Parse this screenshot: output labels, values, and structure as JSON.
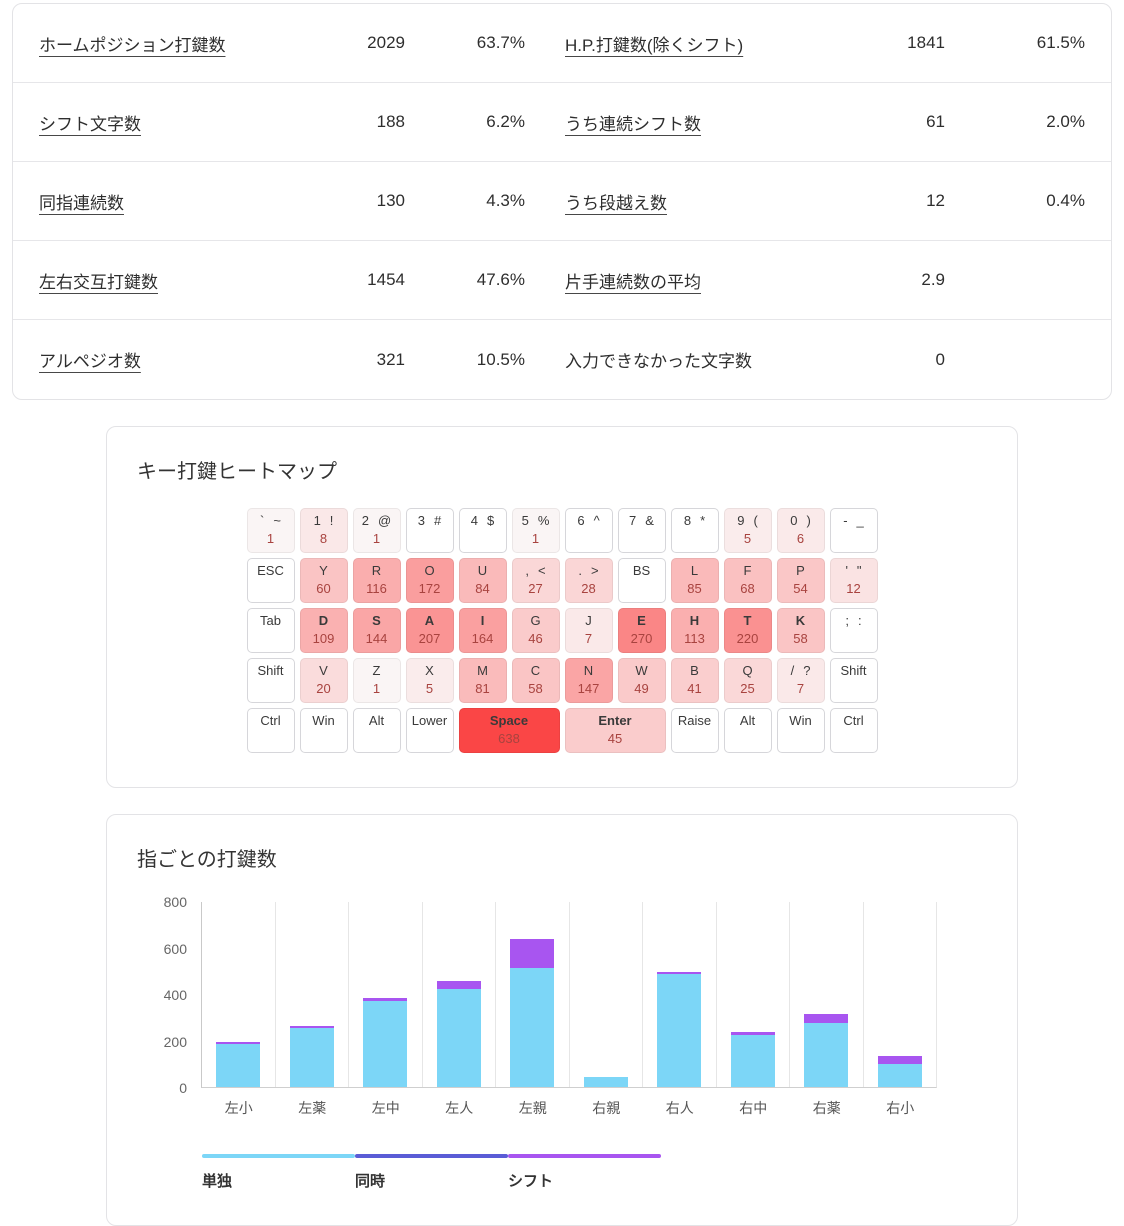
{
  "stats_table": {
    "rows": [
      {
        "cells": [
          {
            "label": "ホームポジション打鍵数",
            "value": "2029",
            "percent": "63.7%",
            "underline": true
          },
          {
            "label": "H.P.打鍵数(除くシフト)",
            "value": "1841",
            "percent": "61.5%",
            "underline": true
          }
        ]
      },
      {
        "cells": [
          {
            "label": "シフト文字数",
            "value": "188",
            "percent": "6.2%",
            "underline": true
          },
          {
            "label": "うち連続シフト数",
            "value": "61",
            "percent": "2.0%",
            "underline": true
          }
        ]
      },
      {
        "cells": [
          {
            "label": "同指連続数",
            "value": "130",
            "percent": "4.3%",
            "underline": true
          },
          {
            "label": "うち段越え数",
            "value": "12",
            "percent": "0.4%",
            "underline": true
          }
        ]
      },
      {
        "cells": [
          {
            "label": "左右交互打鍵数",
            "value": "1454",
            "percent": "47.6%",
            "underline": true
          },
          {
            "label": "片手連続数の平均",
            "value": "2.9",
            "percent": "",
            "underline": true
          }
        ]
      },
      {
        "cells": [
          {
            "label": "アルペジオ数",
            "value": "321",
            "percent": "10.5%",
            "underline": true
          },
          {
            "label": "入力できなかった文字数",
            "value": "0",
            "percent": "",
            "underline": false
          }
        ]
      }
    ]
  },
  "heatmap": {
    "title": "キー打鍵ヒートマップ",
    "max_count": 638,
    "count_text_color": "#a8433f",
    "rows": [
      {
        "keys": [
          {
            "label": "`",
            "sub": "~",
            "count": 1
          },
          {
            "label": "1",
            "sub": "!",
            "count": 8
          },
          {
            "label": "2",
            "sub": "@",
            "count": 1
          },
          {
            "label": "3",
            "sub": "#"
          },
          {
            "label": "4",
            "sub": "$"
          },
          {
            "label": "5",
            "sub": "%",
            "count": 1
          },
          {
            "label": "6",
            "sub": "^"
          },
          {
            "label": "7",
            "sub": "&"
          },
          {
            "label": "8",
            "sub": "*"
          },
          {
            "label": "9",
            "sub": "(",
            "count": 5
          },
          {
            "label": "0",
            "sub": ")",
            "count": 6
          },
          {
            "label": "-",
            "sub": "_"
          }
        ]
      },
      {
        "keys": [
          {
            "label": "ESC",
            "mod": true
          },
          {
            "label": "Y",
            "count": 60
          },
          {
            "label": "R",
            "count": 116
          },
          {
            "label": "O",
            "count": 172
          },
          {
            "label": "U",
            "count": 84
          },
          {
            "label": ",",
            "sub": "<",
            "count": 27
          },
          {
            "label": ".",
            "sub": ">",
            "count": 28
          },
          {
            "label": "BS",
            "mod": true
          },
          {
            "label": "L",
            "count": 85
          },
          {
            "label": "F",
            "count": 68
          },
          {
            "label": "P",
            "count": 54
          },
          {
            "label": "'",
            "sub": "\"",
            "count": 12
          }
        ]
      },
      {
        "keys": [
          {
            "label": "Tab",
            "mod": true
          },
          {
            "label": "D",
            "count": 109,
            "bold": true
          },
          {
            "label": "S",
            "count": 144,
            "bold": true
          },
          {
            "label": "A",
            "count": 207,
            "bold": true
          },
          {
            "label": "I",
            "count": 164,
            "bold": true
          },
          {
            "label": "G",
            "count": 46
          },
          {
            "label": "J",
            "count": 7
          },
          {
            "label": "E",
            "count": 270,
            "bold": true
          },
          {
            "label": "H",
            "count": 113,
            "bold": true
          },
          {
            "label": "T",
            "count": 220,
            "bold": true
          },
          {
            "label": "K",
            "count": 58,
            "bold": true
          },
          {
            "label": ";",
            "sub": ":"
          }
        ]
      },
      {
        "keys": [
          {
            "label": "Shift",
            "mod": true
          },
          {
            "label": "V",
            "count": 20
          },
          {
            "label": "Z",
            "count": 1
          },
          {
            "label": "X",
            "count": 5
          },
          {
            "label": "M",
            "count": 81
          },
          {
            "label": "C",
            "count": 58
          },
          {
            "label": "N",
            "count": 147
          },
          {
            "label": "W",
            "count": 49
          },
          {
            "label": "B",
            "count": 41
          },
          {
            "label": "Q",
            "count": 25
          },
          {
            "label": "/",
            "sub": "?",
            "count": 7
          },
          {
            "label": "Shift",
            "mod": true
          }
        ]
      },
      {
        "keys": [
          {
            "label": "Ctrl",
            "mod": true
          },
          {
            "label": "Win",
            "mod": true
          },
          {
            "label": "Alt",
            "mod": true
          },
          {
            "label": "Lower",
            "mod": true
          },
          {
            "label": "Space",
            "count": 638,
            "bold": true,
            "w": 2
          },
          {
            "label": "Enter",
            "count": 45,
            "bold": true,
            "w": 2
          },
          {
            "label": "Raise",
            "mod": true
          },
          {
            "label": "Alt",
            "mod": true
          },
          {
            "label": "Win",
            "mod": true
          },
          {
            "label": "Ctrl",
            "mod": true
          }
        ]
      }
    ]
  },
  "chart_data": {
    "type": "bar",
    "stacked": true,
    "title": "指ごとの打鍵数",
    "xlabel": "",
    "ylabel": "",
    "categories": [
      "左小",
      "左薬",
      "左中",
      "左人",
      "左親",
      "右親",
      "右人",
      "右中",
      "右薬",
      "右小"
    ],
    "series": [
      {
        "name": "単独",
        "color": "#7cd6f7",
        "values": [
          185,
          255,
          370,
          420,
          510,
          45,
          485,
          225,
          275,
          100
        ]
      },
      {
        "name": "同時",
        "color": "#5a5cd6",
        "values": [
          0,
          0,
          0,
          0,
          0,
          0,
          0,
          0,
          0,
          0
        ]
      },
      {
        "name": "シフト",
        "color": "#a855f0",
        "values": [
          10,
          8,
          12,
          38,
          125,
          0,
          10,
          12,
          38,
          35
        ]
      }
    ],
    "ylim": [
      0,
      800
    ],
    "yticks": [
      0,
      200,
      400,
      600,
      800
    ],
    "grid": "vertical",
    "legend_position": "bottom"
  }
}
